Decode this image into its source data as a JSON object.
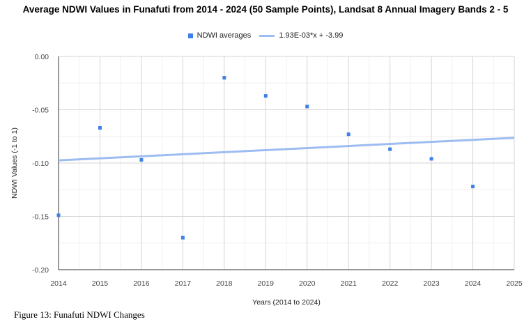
{
  "caption": "Figure 13: Funafuti NDWI Changes",
  "chart_data": {
    "type": "scatter",
    "title": "Average NDWI Values in Funafuti from 2014 - 2024 (50 Sample Points), Landsat 8 Annual Imagery Bands 2 - 5",
    "xlabel": "Years (2014 to 2024)",
    "ylabel": "NDWI Values (-1 to 1)",
    "xlim": [
      2014,
      2025
    ],
    "ylim": [
      -0.2,
      0.0
    ],
    "x_ticks": [
      "2014",
      "2015",
      "2016",
      "2017",
      "2018",
      "2019",
      "2020",
      "2021",
      "2022",
      "2023",
      "2024",
      "2025"
    ],
    "y_ticks": [
      "0.00",
      "-0.05",
      "-0.10",
      "-0.15",
      "-0.20"
    ],
    "grid": true,
    "legend_position": "top",
    "series": [
      {
        "name": "NDWI averages",
        "color": "#3f80e8",
        "points": [
          {
            "x": 2014,
            "y": -0.149
          },
          {
            "x": 2015,
            "y": -0.067
          },
          {
            "x": 2016,
            "y": -0.097
          },
          {
            "x": 2017,
            "y": -0.17
          },
          {
            "x": 2018,
            "y": -0.02
          },
          {
            "x": 2019,
            "y": -0.037
          },
          {
            "x": 2020,
            "y": -0.047
          },
          {
            "x": 2021,
            "y": -0.073
          },
          {
            "x": 2022,
            "y": -0.087
          },
          {
            "x": 2023,
            "y": -0.096
          },
          {
            "x": 2024,
            "y": -0.122
          }
        ]
      }
    ],
    "trendline": {
      "name": "1.93E-03*x + -3.99",
      "color": "#9dbcf1",
      "slope": 0.00193,
      "start": {
        "x": 2014,
        "y": -0.0975
      },
      "end": {
        "x": 2025,
        "y": -0.0763
      }
    }
  }
}
